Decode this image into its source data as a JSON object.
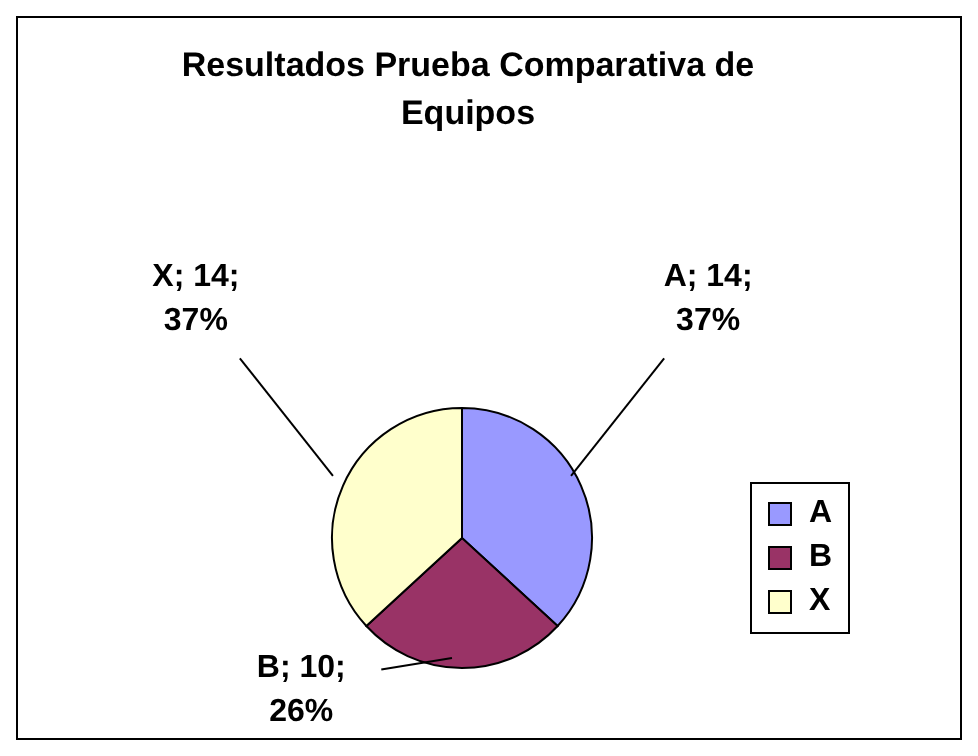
{
  "chart_data": {
    "type": "pie",
    "title": "Resultados Prueba Comparativa de Equipos",
    "categories": [
      "A",
      "B",
      "X"
    ],
    "values": [
      14,
      10,
      14
    ],
    "colors": [
      "#9999ff",
      "#993366",
      "#ffffcc"
    ],
    "value_labels": [
      "A; 14; 37%",
      "B; 10; 26%",
      "X; 14; 37%"
    ],
    "legend": "right"
  }
}
